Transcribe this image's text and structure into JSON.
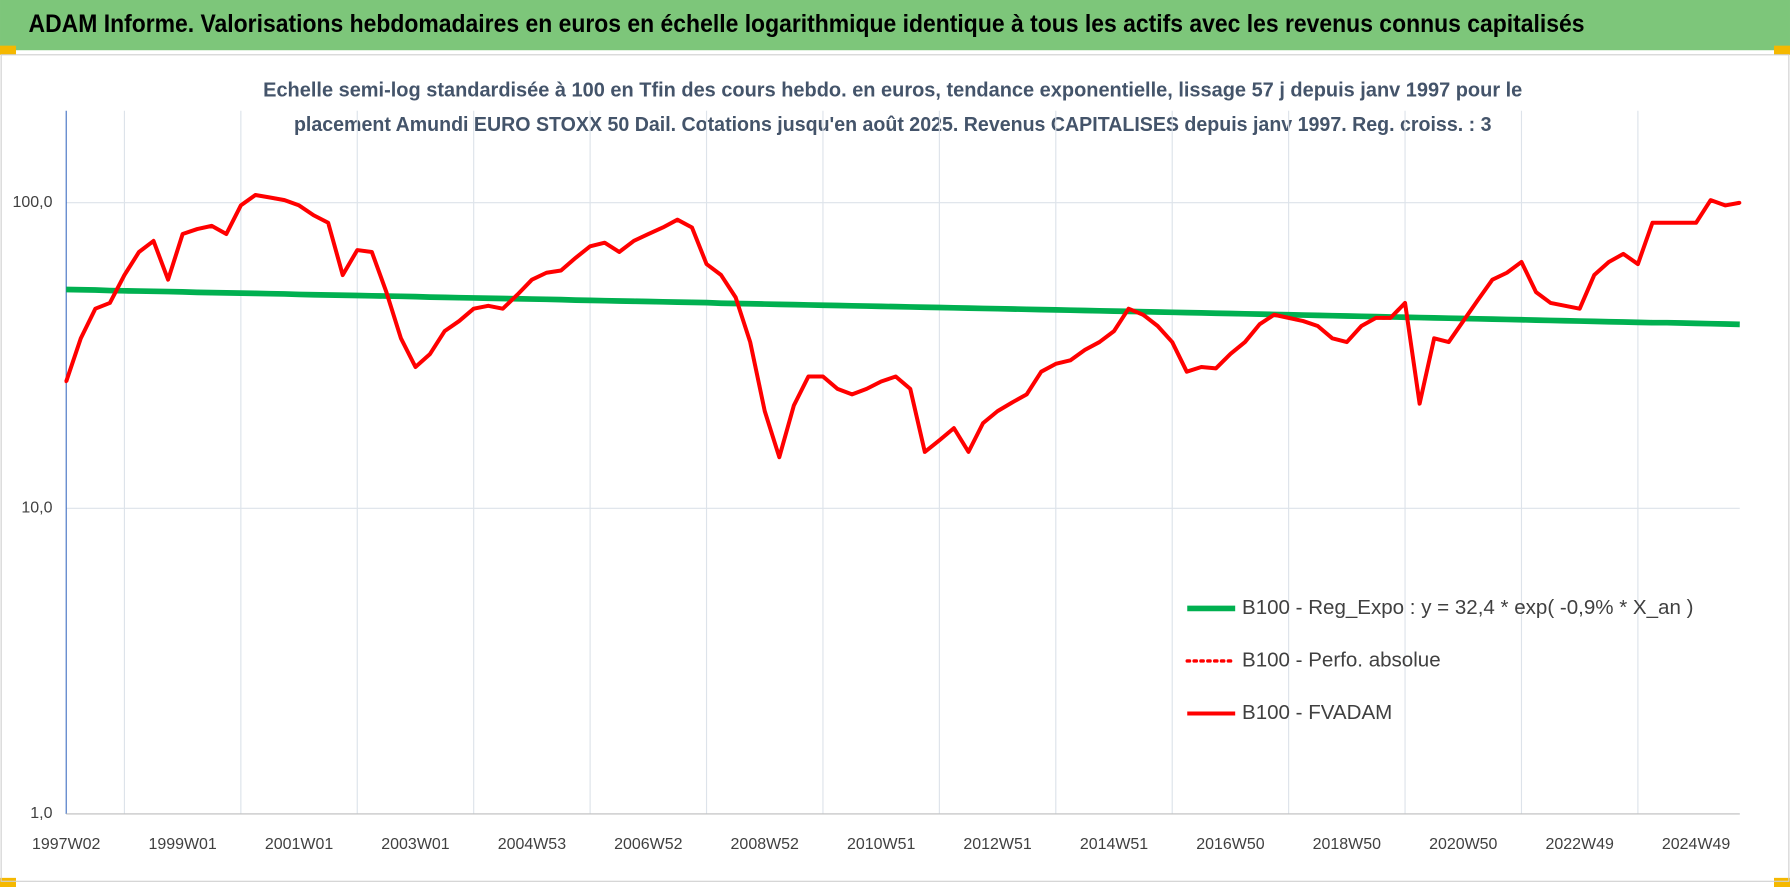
{
  "header": {
    "title": "ADAM Informe. Valorisations hebdomadaires en euros en échelle logarithmique identique à tous les actifs avec les revenus connus capitalisés"
  },
  "chart_data": {
    "type": "line",
    "title": [
      "Echelle semi-log standardisée à 100 en Tfin des cours hebdo. en euros, tendance exponentielle, lissage 57 j depuis janv 1997 pour le",
      "placement Amundi EURO STOXX 50 Dail. Cotations jusqu'en août 2025. Revenus CAPITALISES depuis janv 1997. Reg. croiss. : 3"
    ],
    "log_scale": true,
    "grid": true,
    "legend": "lower right",
    "ylim": [
      1,
      200
    ],
    "yticks": [
      {
        "value": 1,
        "label": "1,0"
      },
      {
        "value": 10,
        "label": "10,0"
      },
      {
        "value": 100,
        "label": "100,0"
      }
    ],
    "categories": [
      "1997W02",
      null,
      null,
      null,
      null,
      null,
      null,
      null,
      "1999W01",
      null,
      null,
      null,
      null,
      null,
      null,
      null,
      "2001W01",
      null,
      null,
      null,
      null,
      null,
      null,
      null,
      "2003W01",
      null,
      null,
      null,
      null,
      null,
      null,
      null,
      "2004W53",
      null,
      null,
      null,
      null,
      null,
      null,
      null,
      "2006W52",
      null,
      null,
      null,
      null,
      null,
      null,
      null,
      "2008W52",
      null,
      null,
      null,
      null,
      null,
      null,
      null,
      "2010W51",
      null,
      null,
      null,
      null,
      null,
      null,
      null,
      "2012W51",
      null,
      null,
      null,
      null,
      null,
      null,
      null,
      "2014W51",
      null,
      null,
      null,
      null,
      null,
      null,
      null,
      "2016W50",
      null,
      null,
      null,
      null,
      null,
      null,
      null,
      "2018W50",
      null,
      null,
      null,
      null,
      null,
      null,
      null,
      "2020W50",
      null,
      null,
      null,
      null,
      null,
      null,
      null,
      "2022W49",
      null,
      null,
      null,
      null,
      null,
      null,
      null,
      "2024W49",
      null,
      null,
      null
    ],
    "series": [
      {
        "name": "B100 - Reg_Expo : y = 32,4 * exp( -0,9% *  X_an )",
        "color": "#00B050",
        "style": "solid",
        "width": 5,
        "values": [
          52.0,
          51.9,
          51.8,
          51.6,
          51.5,
          51.4,
          51.3,
          51.2,
          51.1,
          50.9,
          50.8,
          50.7,
          50.6,
          50.5,
          50.4,
          50.3,
          50.1,
          50.0,
          49.9,
          49.8,
          49.7,
          49.6,
          49.5,
          49.4,
          49.3,
          49.1,
          49.0,
          48.9,
          48.8,
          48.7,
          48.6,
          48.5,
          48.4,
          48.3,
          48.2,
          48.0,
          47.9,
          47.8,
          47.7,
          47.6,
          47.5,
          47.4,
          47.3,
          47.2,
          47.1,
          46.9,
          46.8,
          46.7,
          46.6,
          46.5,
          46.4,
          46.3,
          46.2,
          46.1,
          46.0,
          45.9,
          45.8,
          45.7,
          45.6,
          45.5,
          45.4,
          45.3,
          45.2,
          45.1,
          45.0,
          44.9,
          44.8,
          44.7,
          44.6,
          44.5,
          44.4,
          44.3,
          44.2,
          44.1,
          44.0,
          43.9,
          43.8,
          43.7,
          43.6,
          43.5,
          43.4,
          43.3,
          43.2,
          43.1,
          43.0,
          42.9,
          42.8,
          42.7,
          42.6,
          42.5,
          42.4,
          42.3,
          42.2,
          42.1,
          42.0,
          41.9,
          41.8,
          41.7,
          41.6,
          41.5,
          41.4,
          41.3,
          41.2,
          41.1,
          41.0,
          40.9,
          40.8,
          40.7,
          40.6,
          40.5,
          40.5,
          40.4,
          40.3,
          40.2,
          40.1,
          40.0
        ]
      },
      {
        "name": "B100 - Perfo. absolue",
        "color": "#FF0000",
        "style": "dotted",
        "width": 3,
        "values": [
          26,
          36,
          45,
          47,
          58,
          69,
          75,
          56,
          79,
          82,
          84,
          79,
          98,
          106,
          104,
          102,
          98,
          91,
          86,
          58,
          70,
          69,
          51,
          36,
          29,
          32,
          38,
          41,
          45,
          46,
          45,
          50,
          56,
          59,
          60,
          66,
          72,
          74,
          69,
          75,
          79,
          83,
          88,
          83,
          63,
          58,
          49,
          35,
          20.8,
          14.7,
          21.7,
          27,
          27,
          24.6,
          23.6,
          24.6,
          26,
          27,
          24.6,
          15.3,
          16.7,
          18.3,
          15.3,
          19,
          20.8,
          22.2,
          23.6,
          28,
          29.7,
          30.5,
          33,
          35,
          38,
          45,
          43,
          39.5,
          35,
          28,
          29,
          28.7,
          32,
          35,
          40,
          43,
          42,
          41,
          39.5,
          36,
          35,
          39.5,
          42,
          42,
          47,
          22,
          36,
          35,
          41,
          48,
          56,
          59,
          64,
          51,
          47,
          46,
          45,
          58,
          64,
          68,
          63,
          86,
          86,
          86,
          86,
          102,
          98,
          100
        ]
      },
      {
        "name": "B100 - FVADAM",
        "color": "#FF0000",
        "style": "solid",
        "width": 3.5,
        "values": [
          26,
          36,
          45,
          47,
          58,
          69,
          75,
          56,
          79,
          82,
          84,
          79,
          98,
          106,
          104,
          102,
          98,
          91,
          86,
          58,
          70,
          69,
          51,
          36,
          29,
          32,
          38,
          41,
          45,
          46,
          45,
          50,
          56,
          59,
          60,
          66,
          72,
          74,
          69,
          75,
          79,
          83,
          88,
          83,
          63,
          58,
          49,
          35,
          20.8,
          14.7,
          21.7,
          27,
          27,
          24.6,
          23.6,
          24.6,
          26,
          27,
          24.6,
          15.3,
          16.7,
          18.3,
          15.3,
          19,
          20.8,
          22.2,
          23.6,
          28,
          29.7,
          30.5,
          33,
          35,
          38,
          45,
          43,
          39.5,
          35,
          28,
          29,
          28.7,
          32,
          35,
          40,
          43,
          42,
          41,
          39.5,
          36,
          35,
          39.5,
          42,
          42,
          47,
          22,
          36,
          35,
          41,
          48,
          56,
          59,
          64,
          51,
          47,
          46,
          45,
          58,
          64,
          68,
          63,
          86,
          86,
          86,
          86,
          102,
          98,
          100
        ]
      }
    ]
  }
}
